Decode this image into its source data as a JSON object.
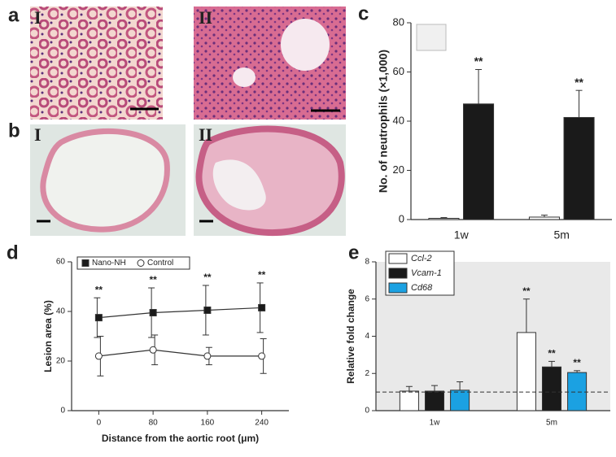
{
  "panels": [
    {
      "label": "a",
      "images": [
        "I",
        "II"
      ]
    },
    {
      "label": "b",
      "images": [
        "I",
        "II"
      ]
    }
  ],
  "chart_data": [
    {
      "type": "bar",
      "panel": "c",
      "ylabel": "No. of neutrophils (×1,000)",
      "categories": [
        "1w",
        "5m"
      ],
      "ylim": [
        0,
        80
      ],
      "yticks": [
        0,
        20,
        40,
        60,
        80
      ],
      "series": [
        {
          "color": "#ffffff",
          "values": [
            0.5,
            1
          ],
          "errors": [
            0.3,
            0.8
          ]
        },
        {
          "color": "#1a1a1a",
          "values": [
            47,
            41.5
          ],
          "errors": [
            14,
            11
          ],
          "annotations": [
            "**",
            "**"
          ]
        }
      ]
    },
    {
      "type": "line",
      "panel": "d",
      "xlabel": "Distance from the aortic root (μm)",
      "ylabel": "Lesion area (%)",
      "x": [
        0,
        80,
        160,
        240
      ],
      "xlim": [
        -40,
        280
      ],
      "xticks": [
        0,
        80,
        160,
        240
      ],
      "ylim": [
        0,
        60
      ],
      "yticks": [
        0,
        20,
        40,
        60
      ],
      "legend": "top-left",
      "series": [
        {
          "name": "Nano-NH",
          "color": "#1a1a1a",
          "marker": "square",
          "values": [
            37.5,
            39.5,
            40.5,
            41.5
          ],
          "errors": [
            8,
            10,
            10,
            10
          ],
          "annotations": [
            "**",
            "**",
            "**",
            "**"
          ]
        },
        {
          "name": "Control",
          "color": "#ffffff",
          "marker": "circle",
          "values": [
            22,
            24.5,
            22,
            22
          ],
          "errors": [
            8,
            6,
            3.5,
            7
          ]
        }
      ]
    },
    {
      "type": "bar",
      "panel": "e",
      "ylabel": "Relative fold change",
      "categories": [
        "1w",
        "5m"
      ],
      "ylim": [
        0,
        8
      ],
      "yticks": [
        0,
        2,
        4,
        6,
        8
      ],
      "hline": 1,
      "legend": "top-left",
      "series": [
        {
          "name": "Ccl-2",
          "color": "#ffffff",
          "values": [
            1.05,
            4.2
          ],
          "errors": [
            0.25,
            1.8
          ],
          "annotations": [
            null,
            "**"
          ]
        },
        {
          "name": "Vcam-1",
          "color": "#1a1a1a",
          "values": [
            1.05,
            2.35
          ],
          "errors": [
            0.3,
            0.3
          ],
          "annotations": [
            null,
            "**"
          ]
        },
        {
          "name": "Cd68",
          "color": "#1ba1e2",
          "values": [
            1.1,
            2.05
          ],
          "errors": [
            0.45,
            0.1
          ],
          "annotations": [
            null,
            "**"
          ]
        }
      ]
    }
  ]
}
